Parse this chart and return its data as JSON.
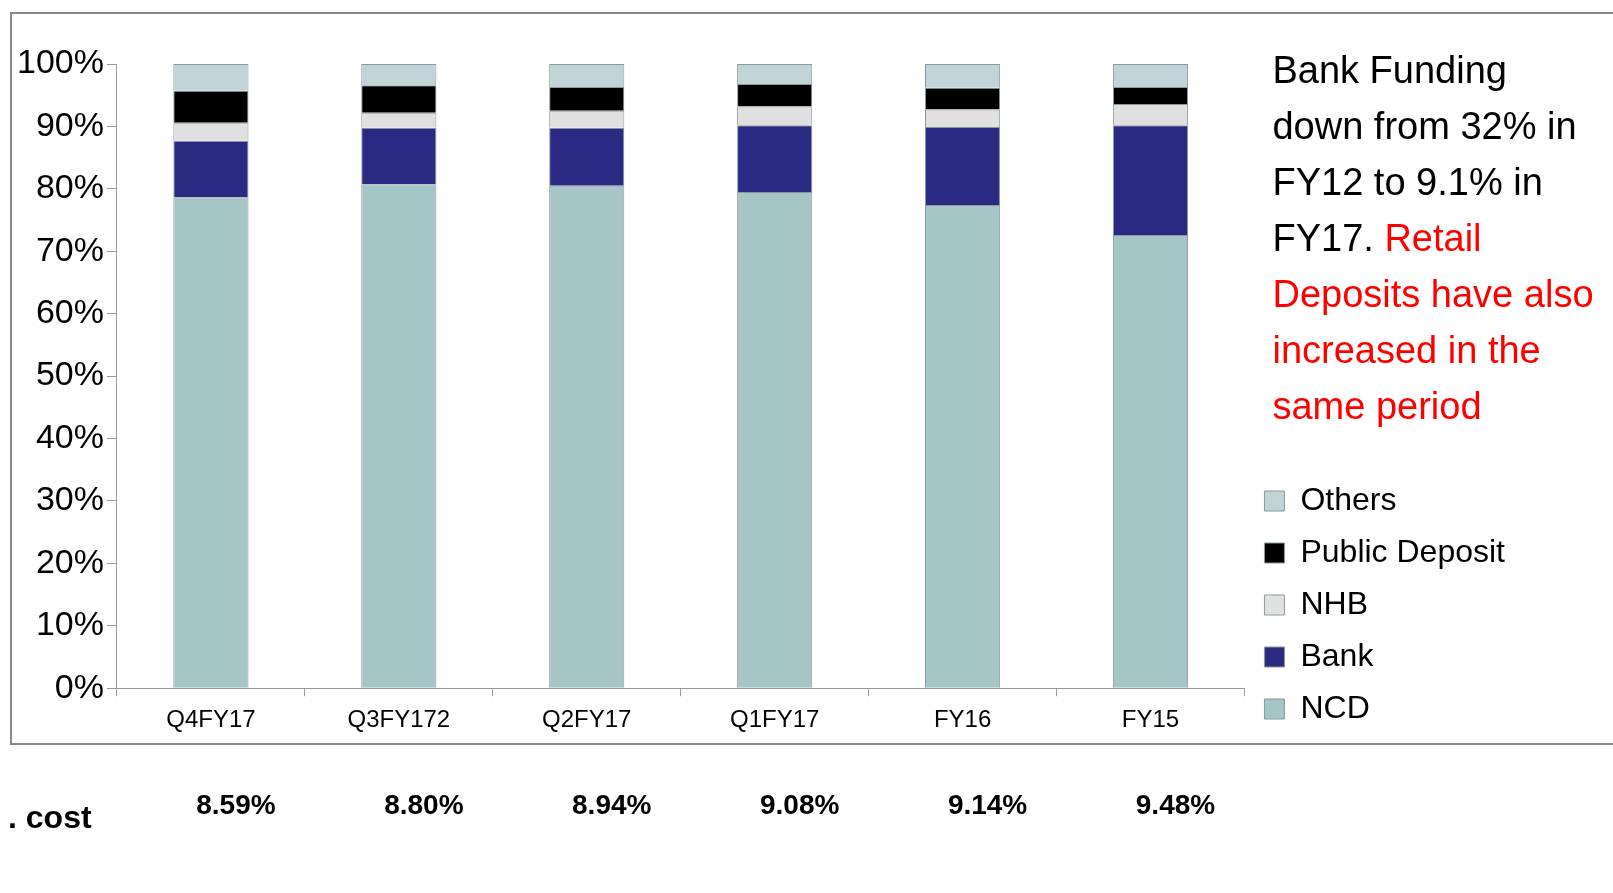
{
  "chart_data": {
    "type": "bar",
    "stacked": true,
    "categories": [
      "Q4FY17",
      "Q3FY172",
      "Q2FY17",
      "Q1FY17",
      "FY16",
      "FY15"
    ],
    "series": [
      {
        "name": "NCD",
        "color": "#a5c5c7",
        "values": [
          78.6,
          80.7,
          80.5,
          79.5,
          77.4,
          72.6
        ]
      },
      {
        "name": "Bank",
        "color": "#2b2a83",
        "values": [
          9.1,
          9.1,
          9.3,
          10.7,
          12.5,
          17.6
        ]
      },
      {
        "name": "NHB",
        "color": "#e0e0e0",
        "values": [
          2.9,
          2.4,
          2.7,
          3.0,
          2.8,
          3.4
        ]
      },
      {
        "name": "Public Deposit",
        "color": "#000000",
        "values": [
          5.1,
          4.4,
          3.8,
          3.6,
          3.5,
          2.7
        ]
      },
      {
        "name": "Others",
        "color": "#c0d3d6",
        "values": [
          4.3,
          3.4,
          3.7,
          3.2,
          3.8,
          3.7
        ]
      }
    ],
    "ylim": [
      0,
      100
    ],
    "yticks": [
      {
        "value": 0,
        "label": "0%"
      },
      {
        "value": 10,
        "label": "10%"
      },
      {
        "value": 20,
        "label": "20%"
      },
      {
        "value": 30,
        "label": "30%"
      },
      {
        "value": 40,
        "label": "40%"
      },
      {
        "value": 50,
        "label": "50%"
      },
      {
        "value": 60,
        "label": "60%"
      },
      {
        "value": 70,
        "label": "70%"
      },
      {
        "value": 80,
        "label": "80%"
      },
      {
        "value": 90,
        "label": "90%"
      },
      {
        "value": 100,
        "label": "100%"
      }
    ],
    "grid": false,
    "legend": "right",
    "annotations": [
      "Bank Funding down from 32% in FY12 to 9.1% in FY17.",
      "Retail Deposits have also increased in the same period",
      ". cost",
      "8.59%",
      "8.80%",
      "8.94%",
      "9.08%",
      "9.14%",
      "9.48%"
    ]
  }
}
